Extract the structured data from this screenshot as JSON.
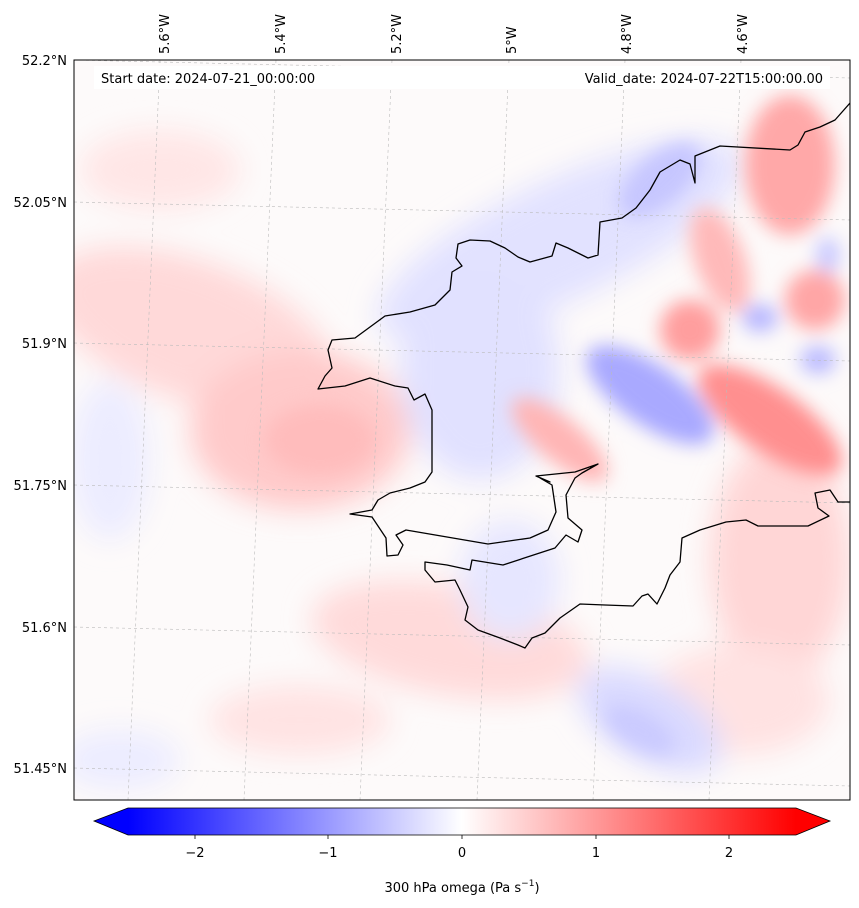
{
  "header": {
    "start_date": "Start date: 2024-07-21_00:00:00",
    "valid_date": "Valid_date: 2024-07-22T15:00:00.00"
  },
  "axes": {
    "lon_ticks": [
      "5.6°W",
      "5.4°W",
      "5.2°W",
      "5°W",
      "4.8°W",
      "4.6°W"
    ],
    "lat_ticks": [
      "52.2°N",
      "52.05°N",
      "51.9°N",
      "51.75°N",
      "51.6°N",
      "51.45°N"
    ]
  },
  "colorbar": {
    "ticks": [
      "−2",
      "−1",
      "0",
      "1",
      "2"
    ],
    "label": "300 hPa omega (Pa s",
    "label_sup": "−1",
    "label_end": ")",
    "cmap": "bwr",
    "range": [
      -2.5,
      2.5
    ]
  },
  "colors": {
    "negative": "#0000ff",
    "neutral": "#ffffff",
    "positive": "#ff0000",
    "coastline": "#000000"
  },
  "field": {
    "name": "omega",
    "level_hpa": 300,
    "units": "Pa s-1"
  }
}
